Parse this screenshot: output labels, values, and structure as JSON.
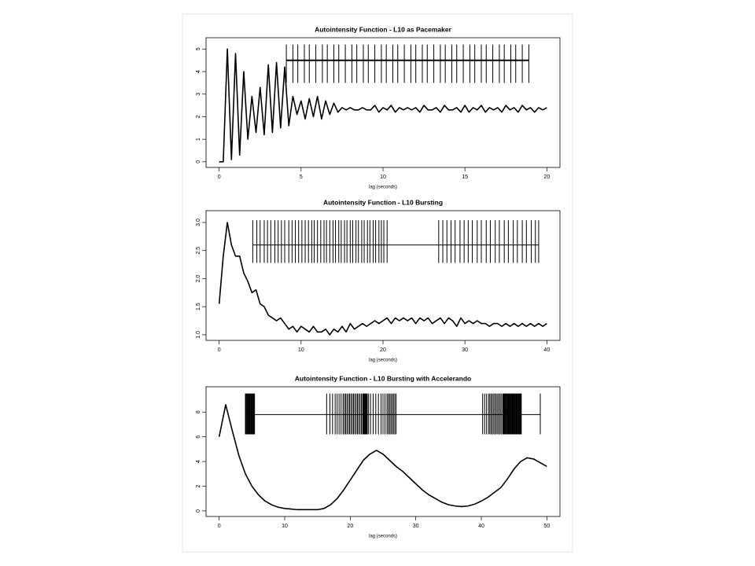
{
  "chart_data": [
    {
      "type": "line",
      "title": "Autointensity Function - L10 as Pacemaker",
      "xlabel": "lag (seconds)",
      "color": "#000000",
      "x": [
        0,
        0.25,
        0.5,
        0.75,
        1,
        1.25,
        1.5,
        1.75,
        2,
        2.25,
        2.5,
        2.75,
        3,
        3.25,
        3.5,
        3.75,
        4,
        4.25,
        4.5,
        4.75,
        5,
        5.25,
        5.5,
        5.75,
        6,
        6.25,
        6.5,
        6.75,
        7,
        7.25,
        7.5,
        7.75,
        8,
        8.25,
        8.5,
        8.75,
        9,
        9.25,
        9.5,
        9.75,
        10,
        10.25,
        10.5,
        10.75,
        11,
        11.25,
        11.5,
        11.75,
        12,
        12.25,
        12.5,
        12.75,
        13,
        13.25,
        13.5,
        13.75,
        14,
        14.25,
        14.5,
        14.75,
        15,
        15.25,
        15.5,
        15.75,
        16,
        16.25,
        16.5,
        16.75,
        17,
        17.25,
        17.5,
        17.75,
        18,
        18.25,
        18.5,
        18.75,
        19,
        19.25,
        19.5,
        19.75,
        20
      ],
      "values": [
        0,
        0,
        5.0,
        0.1,
        4.8,
        0.3,
        4.0,
        1.0,
        2.9,
        1.3,
        3.3,
        1.2,
        4.3,
        1.3,
        4.4,
        1.5,
        4.2,
        1.6,
        2.9,
        2.1,
        2.7,
        1.9,
        2.8,
        2.0,
        2.9,
        1.9,
        2.7,
        2.1,
        2.6,
        2.2,
        2.4,
        2.3,
        2.4,
        2.3,
        2.3,
        2.4,
        2.3,
        2.3,
        2.5,
        2.2,
        2.4,
        2.3,
        2.5,
        2.2,
        2.4,
        2.3,
        2.4,
        2.3,
        2.4,
        2.2,
        2.5,
        2.3,
        2.3,
        2.4,
        2.2,
        2.5,
        2.3,
        2.3,
        2.4,
        2.2,
        2.5,
        2.2,
        2.4,
        2.3,
        2.5,
        2.2,
        2.4,
        2.3,
        2.4,
        2.2,
        2.5,
        2.3,
        2.4,
        2.2,
        2.5,
        2.3,
        2.4,
        2.2,
        2.4,
        2.3,
        2.4
      ],
      "xlim": [
        -0.8,
        20.8
      ],
      "ylim": [
        -0.25,
        5.5
      ],
      "xticks": [
        0,
        5,
        10,
        15,
        20
      ],
      "yticks": [
        0,
        1,
        2,
        3,
        4,
        5
      ],
      "raster": {
        "y": 4.5,
        "tick_range": [
          3.5,
          5.2
        ],
        "spikes": [
          4.1,
          4.5,
          4.8,
          5.2,
          5.5,
          5.9,
          6.3,
          6.6,
          7.0,
          7.3,
          7.7,
          8.1,
          8.4,
          8.8,
          9.1,
          9.5,
          9.9,
          10.2,
          10.6,
          10.9,
          11.3,
          11.7,
          12.0,
          12.4,
          12.7,
          13.1,
          13.5,
          13.8,
          14.2,
          14.5,
          14.9,
          15.3,
          15.6,
          16.0,
          16.3,
          16.7,
          17.1,
          17.4,
          17.8,
          18.1,
          18.5,
          18.9
        ]
      }
    },
    {
      "type": "line",
      "title": "Autointensity Function - L10 Bursting",
      "xlabel": "lag (seconds)",
      "color": "#000000",
      "x": [
        0,
        0.5,
        1,
        1.5,
        2,
        2.5,
        3,
        3.5,
        4,
        4.5,
        5,
        5.5,
        6,
        6.5,
        7,
        7.5,
        8,
        8.5,
        9,
        9.5,
        10,
        10.5,
        11,
        11.5,
        12,
        12.5,
        13,
        13.5,
        14,
        14.5,
        15,
        15.5,
        16,
        16.5,
        17,
        17.5,
        18,
        18.5,
        19,
        19.5,
        20,
        20.5,
        21,
        21.5,
        22,
        22.5,
        23,
        23.5,
        24,
        24.5,
        25,
        25.5,
        26,
        26.5,
        27,
        27.5,
        28,
        28.5,
        29,
        29.5,
        30,
        30.5,
        31,
        31.5,
        32,
        32.5,
        33,
        33.5,
        34,
        34.5,
        35,
        35.5,
        36,
        36.5,
        37,
        37.5,
        38,
        38.5,
        39,
        39.5,
        40
      ],
      "values": [
        1.55,
        2.4,
        3.0,
        2.6,
        2.4,
        2.4,
        2.1,
        1.95,
        1.75,
        1.8,
        1.55,
        1.5,
        1.35,
        1.3,
        1.25,
        1.3,
        1.2,
        1.1,
        1.15,
        1.05,
        1.15,
        1.1,
        1.05,
        1.15,
        1.05,
        1.05,
        1.1,
        1.0,
        1.1,
        1.05,
        1.15,
        1.05,
        1.2,
        1.1,
        1.15,
        1.2,
        1.15,
        1.2,
        1.25,
        1.2,
        1.25,
        1.3,
        1.2,
        1.3,
        1.25,
        1.3,
        1.25,
        1.3,
        1.2,
        1.3,
        1.25,
        1.3,
        1.2,
        1.25,
        1.3,
        1.2,
        1.3,
        1.25,
        1.15,
        1.3,
        1.2,
        1.25,
        1.2,
        1.25,
        1.2,
        1.2,
        1.15,
        1.2,
        1.2,
        1.15,
        1.2,
        1.15,
        1.2,
        1.15,
        1.2,
        1.15,
        1.2,
        1.15,
        1.2,
        1.15,
        1.2
      ],
      "xlim": [
        -1.6,
        41.6
      ],
      "ylim": [
        0.9,
        3.21
      ],
      "xticks": [
        0,
        10,
        20,
        30,
        40
      ],
      "yticks": [
        {
          "value": 1,
          "label": "1.0"
        },
        1.5,
        {
          "value": 2,
          "label": "2.0"
        },
        2.5,
        {
          "value": 3,
          "label": "3.0"
        }
      ],
      "raster": {
        "y": 2.6,
        "tick_range": [
          2.28,
          3.04
        ],
        "spikes": [
          4.1,
          4.6,
          5.0,
          5.5,
          5.9,
          6.3,
          6.8,
          7.2,
          7.6,
          8.0,
          8.5,
          8.9,
          9.3,
          9.7,
          10.1,
          10.5,
          10.9,
          11.3,
          11.6,
          12.0,
          12.4,
          12.8,
          13.1,
          13.5,
          13.9,
          14.2,
          14.6,
          14.9,
          15.3,
          15.6,
          16.0,
          16.3,
          16.7,
          17.0,
          17.4,
          17.7,
          18.1,
          18.4,
          18.8,
          19.1,
          19.5,
          19.8,
          20.1,
          20.5,
          26.8,
          27.3,
          27.8,
          28.3,
          28.8,
          29.4,
          29.9,
          30.4,
          30.9,
          31.5,
          32.0,
          32.6,
          33.1,
          33.7,
          34.2,
          34.8,
          35.3,
          35.9,
          36.4,
          37.0,
          37.5,
          38.1,
          38.6,
          39.0
        ]
      }
    },
    {
      "type": "line",
      "title": "Autointensity Function - L10 Bursting with Accelerando",
      "xlabel": "lag (seconds)",
      "color": "#000000",
      "x": [
        0,
        1,
        2,
        3,
        4,
        5,
        6,
        7,
        8,
        9,
        10,
        11,
        12,
        13,
        14,
        15,
        16,
        17,
        18,
        19,
        20,
        21,
        22,
        23,
        24,
        25,
        26,
        27,
        28,
        29,
        30,
        31,
        32,
        33,
        34,
        35,
        36,
        37,
        38,
        39,
        40,
        41,
        42,
        43,
        44,
        45,
        46,
        47,
        48,
        49,
        50
      ],
      "values": [
        6.0,
        8.6,
        6.5,
        4.5,
        3.0,
        2.0,
        1.3,
        0.8,
        0.5,
        0.3,
        0.2,
        0.15,
        0.1,
        0.1,
        0.1,
        0.1,
        0.2,
        0.5,
        1.0,
        1.7,
        2.5,
        3.3,
        4.1,
        4.6,
        4.9,
        4.6,
        4.1,
        3.6,
        3.2,
        2.7,
        2.2,
        1.7,
        1.3,
        1.0,
        0.7,
        0.5,
        0.4,
        0.35,
        0.4,
        0.55,
        0.8,
        1.1,
        1.5,
        1.9,
        2.6,
        3.4,
        4.0,
        4.3,
        4.2,
        3.9,
        3.6
      ],
      "xlim": [
        -2,
        52
      ],
      "ylim": [
        -0.45,
        10.05
      ],
      "xticks": [
        0,
        10,
        20,
        30,
        40,
        50
      ],
      "yticks": [
        0,
        2,
        4,
        6,
        8
      ],
      "raster": {
        "y": 7.8,
        "tick_range": [
          6.2,
          9.5
        ],
        "spikes": [
          4.0,
          4.1,
          4.2,
          4.3,
          4.4,
          4.5,
          4.6,
          4.7,
          4.8,
          4.9,
          5.0,
          5.1,
          5.2,
          5.3,
          5.4,
          16.4,
          16.9,
          17.3,
          17.7,
          18.0,
          18.3,
          18.6,
          18.9,
          19.1,
          19.3,
          19.5,
          19.7,
          19.9,
          20.1,
          20.3,
          20.5,
          20.7,
          20.9,
          21.1,
          21.3,
          21.5,
          21.7,
          21.9,
          22.0,
          22.1,
          22.2,
          22.3,
          22.4,
          22.5,
          22.6,
          22.8,
          23.1,
          23.5,
          23.9,
          24.3,
          24.7,
          25.0,
          25.3,
          25.6,
          25.8,
          26.0,
          26.2,
          26.4,
          26.6,
          26.8,
          27.0,
          40.2,
          40.5,
          40.8,
          41.1,
          41.3,
          41.5,
          41.7,
          41.9,
          42.1,
          42.3,
          42.5,
          42.7,
          42.9,
          43.1,
          43.3,
          43.4,
          43.5,
          43.6,
          43.7,
          43.8,
          43.9,
          44.0,
          44.1,
          44.2,
          44.3,
          44.4,
          44.5,
          44.6,
          44.7,
          44.8,
          44.9,
          45.0,
          45.1,
          45.2,
          45.3,
          45.4,
          45.5,
          45.6,
          45.7,
          45.8,
          45.9,
          46.0,
          46.1,
          49.0
        ]
      }
    }
  ]
}
